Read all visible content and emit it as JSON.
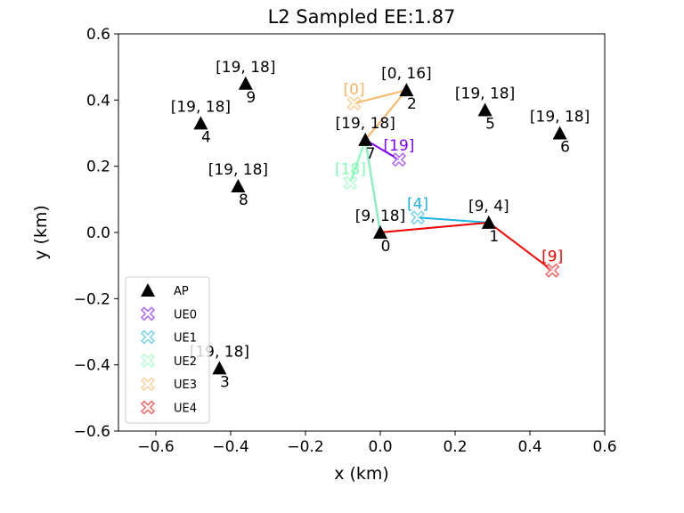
{
  "chart_data": {
    "type": "scatter",
    "title": "L2 Sampled EE:1.87",
    "xlabel": "x (km)",
    "ylabel": "y (km)",
    "xlim": [
      -0.7,
      0.6
    ],
    "ylim": [
      -0.6,
      0.6
    ],
    "xticks": [
      -0.6,
      -0.4,
      -0.2,
      0.0,
      0.2,
      0.4,
      0.6
    ],
    "yticks": [
      -0.6,
      -0.4,
      -0.2,
      0.0,
      0.2,
      0.4,
      0.6
    ],
    "xtick_labels": [
      "−0.6",
      "−0.4",
      "−0.2",
      "0.0",
      "0.2",
      "0.4",
      "0.6"
    ],
    "ytick_labels": [
      "−0.6",
      "−0.4",
      "−0.2",
      "0.0",
      "0.2",
      "0.4",
      "0.6"
    ],
    "grid": false,
    "legend_position": "lower-left",
    "legend": [
      "AP",
      "UE0",
      "UE1",
      "UE2",
      "UE3",
      "UE4"
    ],
    "aps": [
      {
        "id": "0",
        "x": 0.0,
        "y": 0.0,
        "label": "[9, 18]"
      },
      {
        "id": "1",
        "x": 0.29,
        "y": 0.03,
        "label": "[9, 4]"
      },
      {
        "id": "2",
        "x": 0.07,
        "y": 0.43,
        "label": "[0, 16]"
      },
      {
        "id": "3",
        "x": -0.43,
        "y": -0.41,
        "label": "[19, 18]"
      },
      {
        "id": "4",
        "x": -0.48,
        "y": 0.33,
        "label": "[19, 18]"
      },
      {
        "id": "5",
        "x": 0.28,
        "y": 0.37,
        "label": "[19, 18]"
      },
      {
        "id": "6",
        "x": 0.48,
        "y": 0.3,
        "label": "[19, 18]"
      },
      {
        "id": "7",
        "x": -0.04,
        "y": 0.28,
        "label": "[19, 18]"
      },
      {
        "id": "8",
        "x": -0.38,
        "y": 0.14,
        "label": "[19, 18]"
      },
      {
        "id": "9",
        "x": -0.36,
        "y": 0.45,
        "label": "[19, 18]"
      }
    ],
    "ues": [
      {
        "name": "UE0",
        "x": 0.05,
        "y": 0.22,
        "label": "[19]",
        "color": "#8000ff",
        "path_aps": [
          0,
          7
        ]
      },
      {
        "name": "UE1",
        "x": 0.1,
        "y": 0.045,
        "label": "[4]",
        "color": "#1cb4e3",
        "path_aps": [
          0,
          1
        ]
      },
      {
        "name": "UE2",
        "x": -0.08,
        "y": 0.15,
        "label": "[18]",
        "color": "#80ffb4",
        "path_aps": [
          0,
          7
        ]
      },
      {
        "name": "UE3",
        "x": -0.07,
        "y": 0.39,
        "label": "[0]",
        "color": "#ffb360",
        "path_aps": [
          7,
          2
        ]
      },
      {
        "name": "UE4",
        "x": 0.46,
        "y": -0.115,
        "label": "[9]",
        "color": "#ff0000",
        "path_aps": [
          0,
          1
        ]
      }
    ]
  }
}
